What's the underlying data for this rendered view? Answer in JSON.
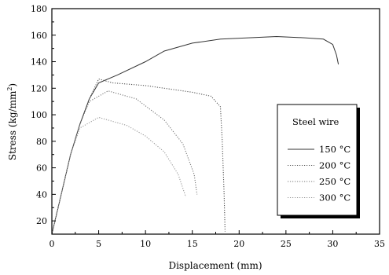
{
  "chart_data": {
    "type": "line",
    "xlabel": "Displacement (mm)",
    "ylabel_main": "Stress (kg/mm",
    "ylabel_sup": "2",
    "ylabel_end": ")",
    "xlim": [
      0,
      35
    ],
    "ylim": [
      10,
      180
    ],
    "xticks": [
      0,
      5,
      10,
      15,
      20,
      25,
      30,
      35
    ],
    "yticks": [
      20,
      40,
      60,
      80,
      100,
      120,
      140,
      160,
      180
    ],
    "grid": false,
    "legend_position": "center-right",
    "legend_title": "Steel wire",
    "series": [
      {
        "name": "150 °C",
        "dash": "solid",
        "color": "#333333",
        "points": [
          [
            0,
            10
          ],
          [
            1,
            40
          ],
          [
            2,
            70
          ],
          [
            3,
            93
          ],
          [
            4,
            112
          ],
          [
            5,
            124
          ],
          [
            7,
            130
          ],
          [
            10,
            140
          ],
          [
            12,
            148
          ],
          [
            15,
            154
          ],
          [
            18,
            157
          ],
          [
            21,
            158
          ],
          [
            24,
            159
          ],
          [
            27,
            158
          ],
          [
            29,
            157
          ],
          [
            30,
            153
          ],
          [
            30.4,
            145
          ],
          [
            30.6,
            138
          ]
        ]
      },
      {
        "name": "200 °C",
        "dash": "dotted",
        "color": "#555555",
        "points": [
          [
            0,
            10
          ],
          [
            1,
            40
          ],
          [
            2,
            70
          ],
          [
            3,
            93
          ],
          [
            4,
            112
          ],
          [
            5,
            127
          ],
          [
            6.5,
            124
          ],
          [
            10,
            122
          ],
          [
            13,
            119
          ],
          [
            15,
            117
          ],
          [
            17,
            114
          ],
          [
            18,
            106
          ],
          [
            18.2,
            80
          ],
          [
            18.4,
            40
          ],
          [
            18.5,
            12
          ]
        ]
      },
      {
        "name": "250 °C",
        "dash": "dotted",
        "color": "#777777",
        "points": [
          [
            0,
            10
          ],
          [
            1,
            40
          ],
          [
            2,
            70
          ],
          [
            3,
            93
          ],
          [
            4,
            110
          ],
          [
            6,
            118
          ],
          [
            9,
            112
          ],
          [
            12,
            96
          ],
          [
            14,
            78
          ],
          [
            15.2,
            55
          ],
          [
            15.5,
            40
          ]
        ]
      },
      {
        "name": "300 °C",
        "dash": "dotted",
        "color": "#999999",
        "points": [
          [
            0,
            10
          ],
          [
            1,
            40
          ],
          [
            2,
            70
          ],
          [
            3,
            90
          ],
          [
            5,
            98
          ],
          [
            8,
            92
          ],
          [
            10,
            84
          ],
          [
            12,
            72
          ],
          [
            13.5,
            55
          ],
          [
            14.3,
            38
          ]
        ]
      }
    ]
  }
}
